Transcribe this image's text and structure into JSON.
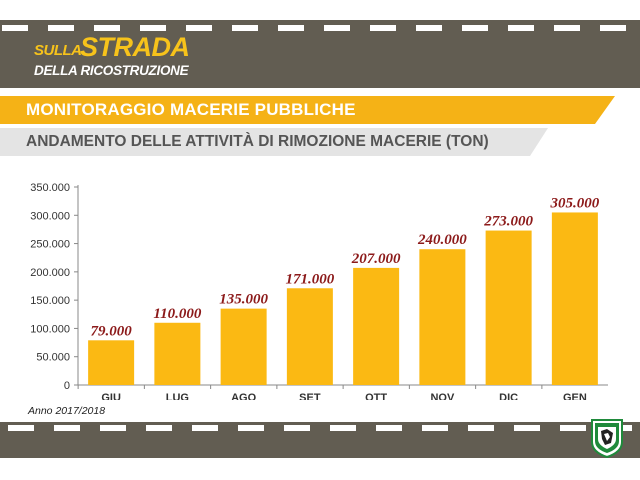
{
  "header": {
    "logo_line1_small": "SULLA",
    "logo_line1_big": "STRADA",
    "logo_line2": "DELLA RICOSTRUZIONE",
    "title": "MONITORAGGIO MACERIE PUBBLICHE",
    "subtitle": "ANDAMENTO DELLE ATTIVITÀ DI RIMOZIONE MACERIE (TON)"
  },
  "footer": {
    "note": "Anno 2017/2018",
    "emblem_icon": "region-emblem-icon"
  },
  "colors": {
    "road": "#625d52",
    "accent": "#f5b216",
    "bar": "#fbb913",
    "data_label": "#8c1a1a"
  },
  "chart_data": {
    "type": "bar",
    "categories": [
      "GIU",
      "LUG",
      "AGO",
      "SET",
      "OTT",
      "NOV",
      "DIC",
      "GEN"
    ],
    "values": [
      79000,
      110000,
      135000,
      171000,
      207000,
      240000,
      273000,
      305000
    ],
    "data_labels": [
      "79.000",
      "110.000",
      "135.000",
      "171.000",
      "207.000",
      "240.000",
      "273.000",
      "305.000"
    ],
    "yticks": [
      0,
      50000,
      100000,
      150000,
      200000,
      250000,
      300000,
      350000
    ],
    "ytick_labels": [
      "0",
      "50.000",
      "100.000",
      "150.000",
      "200.000",
      "250.000",
      "300.000",
      "350.000"
    ],
    "ylim": [
      0,
      350000
    ],
    "title": "ANDAMENTO DELLE ATTIVITÀ DI RIMOZIONE MACERIE (TON)",
    "xlabel": "",
    "ylabel": "",
    "grid": false,
    "legend": "none"
  }
}
